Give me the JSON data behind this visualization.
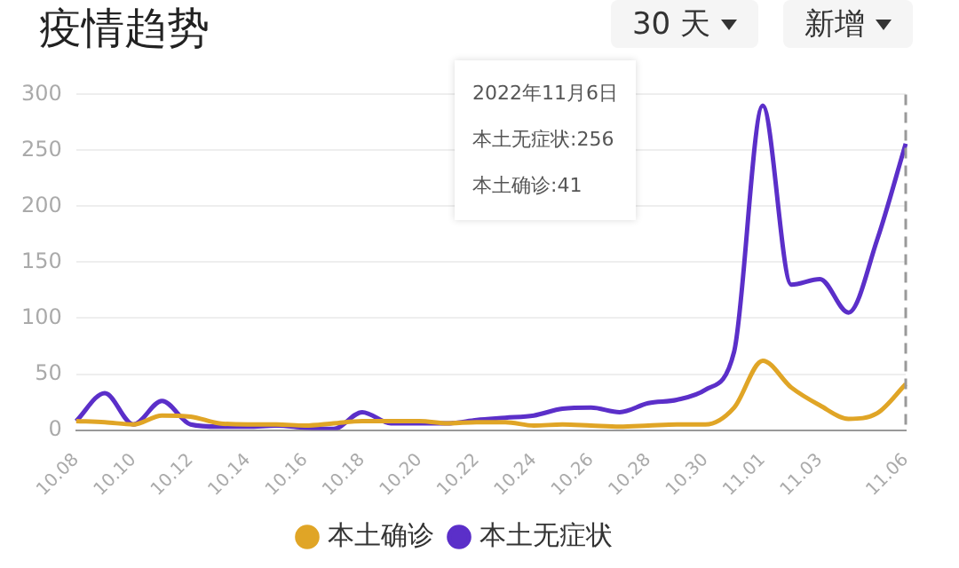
{
  "chart_data": {
    "type": "line",
    "title": "疫情趋势",
    "annotations": [
      "30 天",
      "新增",
      "2022年11月6日",
      "本土无症状:256",
      "本土确诊:41"
    ],
    "categories": [
      "10.08",
      null,
      "10.10",
      null,
      "10.12",
      null,
      "10.14",
      null,
      "10.16",
      null,
      "10.18",
      null,
      "10.20",
      null,
      "10.22",
      null,
      "10.24",
      null,
      "10.26",
      null,
      "10.28",
      null,
      "10.30",
      null,
      "11.01",
      null,
      "11.03",
      null,
      null,
      "11.06"
    ],
    "series": [
      {
        "name": "本土确诊",
        "color": "#e0a526",
        "values": [
          8,
          7,
          5,
          13,
          12,
          6,
          5,
          5,
          4,
          6,
          8,
          8,
          8,
          6,
          7,
          7,
          4,
          5,
          4,
          3,
          4,
          5,
          5,
          20,
          62,
          38,
          22,
          10,
          15,
          41
        ]
      },
      {
        "name": "本土无症状",
        "color": "#5b2fc9",
        "values": [
          8,
          33,
          5,
          26,
          5,
          3,
          3,
          4,
          2,
          1,
          16,
          6,
          6,
          6,
          9,
          11,
          13,
          19,
          20,
          16,
          24,
          27,
          36,
          70,
          290,
          130,
          135,
          105,
          170,
          256
        ]
      }
    ],
    "ylim": [
      0,
      300
    ],
    "yticks": [
      0,
      50,
      100,
      150,
      200,
      250,
      300
    ],
    "grid": "y",
    "legend": "bottom",
    "marker": "none",
    "ref_lines": [
      {
        "axis": "x",
        "value": "11.06",
        "color": "#999999",
        "line_style": "dashed"
      }
    ]
  }
}
